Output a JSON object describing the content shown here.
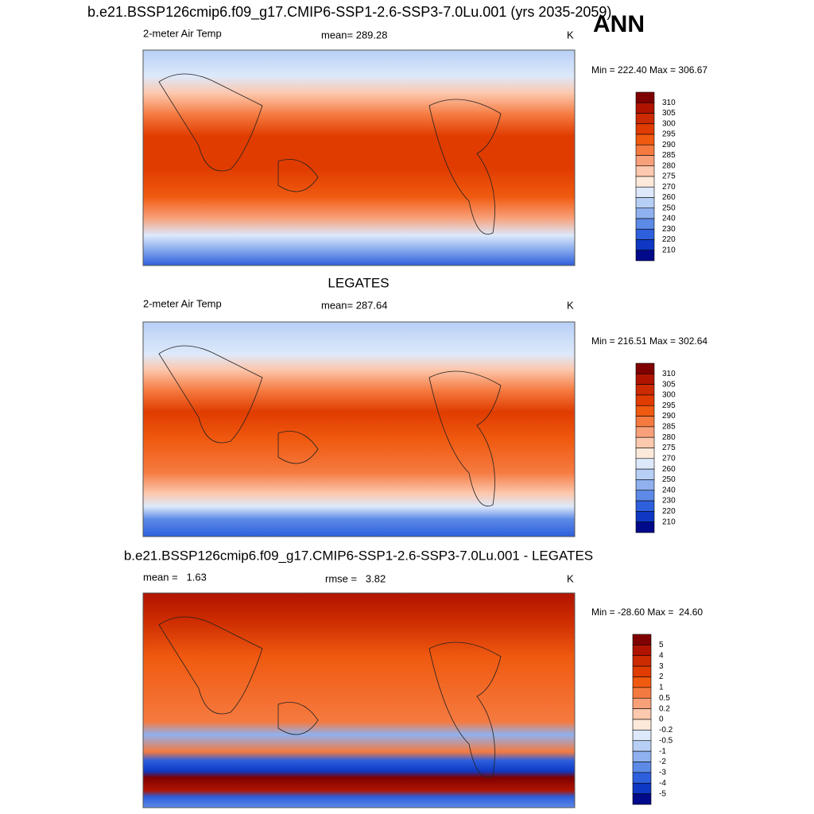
{
  "header": {
    "title": "b.e21.BSSP126cmip6.f09_g17.CMIP6-SSP1-2.6-SSP3-7.0Lu.001 (yrs 2035-2059)",
    "season": "ANN"
  },
  "panels": [
    {
      "left": "2-meter Air Temp",
      "center": "mean= 289.28",
      "units": "K",
      "range": "Min = 222.40 Max = 306.67",
      "colorbar": {
        "labels": [
          310,
          305,
          300,
          295,
          290,
          285,
          280,
          275,
          270,
          260,
          250,
          240,
          230,
          220,
          210
        ],
        "colors": [
          "#7f0000",
          "#b01400",
          "#cc2a00",
          "#e03c00",
          "#f05a10",
          "#f57a40",
          "#f8a07a",
          "#fcc8ae",
          "#fde9da",
          "#dde9fb",
          "#b7cff5",
          "#8fb1ef",
          "#5c8ae6",
          "#2e5fdc",
          "#0e38c4",
          "#000a8a"
        ]
      }
    },
    {
      "title": "LEGATES",
      "left": "2-meter Air Temp",
      "center": "mean= 287.64",
      "units": "K",
      "range": "Min = 216.51 Max = 302.64",
      "colorbar": {
        "labels": [
          310,
          305,
          300,
          295,
          290,
          285,
          280,
          275,
          270,
          260,
          250,
          240,
          230,
          220,
          210
        ],
        "colors": [
          "#7f0000",
          "#b01400",
          "#cc2a00",
          "#e03c00",
          "#f05a10",
          "#f57a40",
          "#f8a07a",
          "#fcc8ae",
          "#fde9da",
          "#dde9fb",
          "#b7cff5",
          "#8fb1ef",
          "#5c8ae6",
          "#2e5fdc",
          "#0e38c4",
          "#000a8a"
        ]
      }
    },
    {
      "title": "b.e21.BSSP126cmip6.f09_g17.CMIP6-SSP1-2.6-SSP3-7.0Lu.001 - LEGATES",
      "left": "mean =   1.63",
      "center": "rmse =   3.82",
      "units": "K",
      "range": "Min = -28.60 Max =  24.60",
      "colorbar": {
        "labels": [
          5,
          4,
          3,
          2,
          1,
          0.5,
          0.2,
          0,
          -0.2,
          -0.5,
          -1,
          -2,
          -3,
          -4,
          -5
        ],
        "colors": [
          "#7f0000",
          "#b01400",
          "#cc2a00",
          "#e03c00",
          "#f05a10",
          "#f57a40",
          "#f8a07a",
          "#fcc8ae",
          "#fde9da",
          "#dde9fb",
          "#b7cff5",
          "#8fb1ef",
          "#5c8ae6",
          "#2e5fdc",
          "#0e38c4",
          "#000a8a"
        ]
      }
    }
  ]
}
